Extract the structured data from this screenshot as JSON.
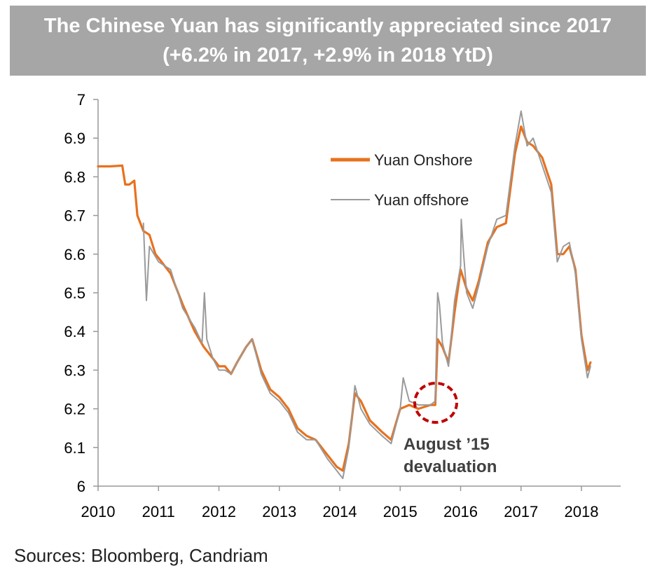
{
  "title": "The Chinese Yuan has significantly appreciated since 2017 (+6.2% in 2017, +2.9% in 2018 YtD)",
  "source": "Sources: Bloomberg, Candriam",
  "annotation": {
    "line1": "August ’15",
    "line2": "devaluation",
    "circle_color": "#c00000"
  },
  "colors": {
    "onshore": "#e8711e",
    "offshore": "#9a9a9a"
  },
  "chart_data": {
    "type": "line",
    "title": "The Chinese Yuan has significantly appreciated since 2017 (+6.2% in 2017, +2.9% in 2018 YtD)",
    "xlabel": "",
    "ylabel": "",
    "xlim": [
      2010,
      2018.7
    ],
    "ylim": [
      6,
      7
    ],
    "xticks": [
      "2010",
      "2011",
      "2012",
      "2013",
      "2014",
      "2015",
      "2016",
      "2017",
      "2018"
    ],
    "yticks": [
      "6",
      "6.1",
      "6.2",
      "6.3",
      "6.4",
      "6.5",
      "6.6",
      "6.7",
      "6.8",
      "6.9",
      "7"
    ],
    "legend_position": "upper-right",
    "grid": false,
    "series": [
      {
        "name": "Yuan Onshore",
        "color": "#e8711e",
        "x": [
          2010.0,
          2010.2,
          2010.4,
          2010.45,
          2010.52,
          2010.6,
          2010.65,
          2010.75,
          2010.85,
          2010.95,
          2011.0,
          2011.2,
          2011.4,
          2011.6,
          2011.75,
          2011.9,
          2012.0,
          2012.1,
          2012.2,
          2012.3,
          2012.45,
          2012.55,
          2012.7,
          2012.85,
          2013.0,
          2013.15,
          2013.3,
          2013.45,
          2013.6,
          2013.8,
          2013.95,
          2014.05,
          2014.15,
          2014.25,
          2014.35,
          2014.5,
          2014.7,
          2014.85,
          2015.0,
          2015.15,
          2015.3,
          2015.5,
          2015.58,
          2015.62,
          2015.7,
          2015.8,
          2015.9,
          2016.0,
          2016.1,
          2016.2,
          2016.3,
          2016.45,
          2016.6,
          2016.75,
          2016.9,
          2017.0,
          2017.1,
          2017.2,
          2017.35,
          2017.5,
          2017.6,
          2017.7,
          2017.8,
          2017.9,
          2018.0,
          2018.1,
          2018.15
        ],
        "values": [
          6.827,
          6.827,
          6.829,
          6.78,
          6.78,
          6.79,
          6.7,
          6.66,
          6.65,
          6.6,
          6.59,
          6.55,
          6.47,
          6.4,
          6.36,
          6.33,
          6.31,
          6.31,
          6.29,
          6.32,
          6.36,
          6.38,
          6.3,
          6.25,
          6.23,
          6.2,
          6.15,
          6.13,
          6.12,
          6.08,
          6.05,
          6.04,
          6.11,
          6.24,
          6.22,
          6.17,
          6.14,
          6.12,
          6.2,
          6.21,
          6.2,
          6.21,
          6.21,
          6.38,
          6.36,
          6.32,
          6.45,
          6.56,
          6.51,
          6.48,
          6.53,
          6.63,
          6.67,
          6.68,
          6.86,
          6.93,
          6.89,
          6.88,
          6.85,
          6.78,
          6.6,
          6.6,
          6.62,
          6.56,
          6.39,
          6.3,
          6.32
        ]
      },
      {
        "name": "Yuan offshore",
        "color": "#9a9a9a",
        "x": [
          2010.75,
          2010.8,
          2010.85,
          2011.0,
          2011.2,
          2011.4,
          2011.6,
          2011.72,
          2011.76,
          2011.8,
          2011.9,
          2012.0,
          2012.1,
          2012.2,
          2012.3,
          2012.45,
          2012.55,
          2012.7,
          2012.85,
          2013.0,
          2013.15,
          2013.3,
          2013.45,
          2013.6,
          2013.8,
          2013.95,
          2014.05,
          2014.15,
          2014.25,
          2014.35,
          2014.5,
          2014.7,
          2014.85,
          2015.0,
          2015.05,
          2015.15,
          2015.3,
          2015.5,
          2015.58,
          2015.62,
          2015.65,
          2015.7,
          2015.8,
          2015.9,
          2016.0,
          2016.01,
          2016.05,
          2016.1,
          2016.2,
          2016.3,
          2016.45,
          2016.6,
          2016.75,
          2016.9,
          2017.0,
          2017.1,
          2017.2,
          2017.35,
          2017.5,
          2017.6,
          2017.7,
          2017.8,
          2017.9,
          2018.0,
          2018.1,
          2018.15
        ],
        "values": [
          6.68,
          6.48,
          6.62,
          6.58,
          6.56,
          6.46,
          6.41,
          6.37,
          6.5,
          6.38,
          6.33,
          6.3,
          6.3,
          6.29,
          6.32,
          6.36,
          6.38,
          6.29,
          6.24,
          6.22,
          6.19,
          6.14,
          6.12,
          6.12,
          6.07,
          6.04,
          6.02,
          6.1,
          6.26,
          6.2,
          6.16,
          6.13,
          6.11,
          6.2,
          6.28,
          6.22,
          6.21,
          6.21,
          6.22,
          6.5,
          6.47,
          6.37,
          6.31,
          6.48,
          6.57,
          6.69,
          6.6,
          6.5,
          6.46,
          6.52,
          6.62,
          6.69,
          6.7,
          6.88,
          6.97,
          6.88,
          6.9,
          6.83,
          6.76,
          6.58,
          6.62,
          6.63,
          6.55,
          6.38,
          6.28,
          6.31
        ]
      }
    ]
  }
}
